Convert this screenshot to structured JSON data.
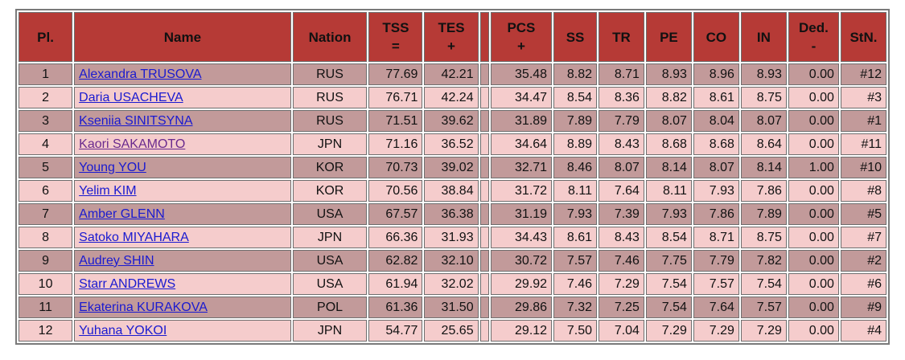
{
  "headers": {
    "pl": "Pl.",
    "name": "Name",
    "nation": "Nation",
    "tss_top": "TSS",
    "tss_bottom": "=",
    "tes_top": "TES",
    "tes_bottom": "+",
    "pcs_top": "PCS",
    "pcs_bottom": "+",
    "ss": "SS",
    "tr": "TR",
    "pe": "PE",
    "co": "CO",
    "in": "IN",
    "ded_top": "Ded.",
    "ded_bottom": "-",
    "stn": "StN."
  },
  "rows": [
    {
      "pl": "1",
      "name": "Alexandra TRUSOVA",
      "nation": "RUS",
      "tss": "77.69",
      "tes": "42.21",
      "pcs": "35.48",
      "ss": "8.82",
      "tr": "8.71",
      "pe": "8.93",
      "co": "8.96",
      "in": "8.93",
      "ded": "0.00",
      "stn": "#12"
    },
    {
      "pl": "2",
      "name": "Daria USACHEVA",
      "nation": "RUS",
      "tss": "76.71",
      "tes": "42.24",
      "pcs": "34.47",
      "ss": "8.54",
      "tr": "8.36",
      "pe": "8.82",
      "co": "8.61",
      "in": "8.75",
      "ded": "0.00",
      "stn": "#3"
    },
    {
      "pl": "3",
      "name": "Kseniia SINITSYNA",
      "nation": "RUS",
      "tss": "71.51",
      "tes": "39.62",
      "pcs": "31.89",
      "ss": "7.89",
      "tr": "7.79",
      "pe": "8.07",
      "co": "8.04",
      "in": "8.07",
      "ded": "0.00",
      "stn": "#1"
    },
    {
      "pl": "4",
      "name": "Kaori SAKAMOTO",
      "nation": "JPN",
      "tss": "71.16",
      "tes": "36.52",
      "pcs": "34.64",
      "ss": "8.89",
      "tr": "8.43",
      "pe": "8.68",
      "co": "8.68",
      "in": "8.64",
      "ded": "0.00",
      "stn": "#11"
    },
    {
      "pl": "5",
      "name": "Young YOU",
      "nation": "KOR",
      "tss": "70.73",
      "tes": "39.02",
      "pcs": "32.71",
      "ss": "8.46",
      "tr": "8.07",
      "pe": "8.14",
      "co": "8.07",
      "in": "8.14",
      "ded": "1.00",
      "stn": "#10"
    },
    {
      "pl": "6",
      "name": "Yelim KIM",
      "nation": "KOR",
      "tss": "70.56",
      "tes": "38.84",
      "pcs": "31.72",
      "ss": "8.11",
      "tr": "7.64",
      "pe": "8.11",
      "co": "7.93",
      "in": "7.86",
      "ded": "0.00",
      "stn": "#8"
    },
    {
      "pl": "7",
      "name": "Amber GLENN",
      "nation": "USA",
      "tss": "67.57",
      "tes": "36.38",
      "pcs": "31.19",
      "ss": "7.93",
      "tr": "7.39",
      "pe": "7.93",
      "co": "7.86",
      "in": "7.89",
      "ded": "0.00",
      "stn": "#5"
    },
    {
      "pl": "8",
      "name": "Satoko MIYAHARA",
      "nation": "JPN",
      "tss": "66.36",
      "tes": "31.93",
      "pcs": "34.43",
      "ss": "8.61",
      "tr": "8.43",
      "pe": "8.54",
      "co": "8.71",
      "in": "8.75",
      "ded": "0.00",
      "stn": "#7"
    },
    {
      "pl": "9",
      "name": "Audrey SHIN",
      "nation": "USA",
      "tss": "62.82",
      "tes": "32.10",
      "pcs": "30.72",
      "ss": "7.57",
      "tr": "7.46",
      "pe": "7.75",
      "co": "7.79",
      "in": "7.82",
      "ded": "0.00",
      "stn": "#2"
    },
    {
      "pl": "10",
      "name": "Starr ANDREWS",
      "nation": "USA",
      "tss": "61.94",
      "tes": "32.02",
      "pcs": "29.92",
      "ss": "7.46",
      "tr": "7.29",
      "pe": "7.54",
      "co": "7.57",
      "in": "7.54",
      "ded": "0.00",
      "stn": "#6"
    },
    {
      "pl": "11",
      "name": "Ekaterina KURAKOVA",
      "nation": "POL",
      "tss": "61.36",
      "tes": "31.50",
      "pcs": "29.86",
      "ss": "7.32",
      "tr": "7.25",
      "pe": "7.54",
      "co": "7.64",
      "in": "7.57",
      "ded": "0.00",
      "stn": "#9"
    },
    {
      "pl": "12",
      "name": "Yuhana YOKOI",
      "nation": "JPN",
      "tss": "54.77",
      "tes": "25.65",
      "pcs": "29.12",
      "ss": "7.50",
      "tr": "7.04",
      "pe": "7.29",
      "co": "7.29",
      "in": "7.29",
      "ded": "0.00",
      "stn": "#4"
    }
  ],
  "colors": {
    "header_bg": "#b63a36",
    "row_dark": "#c29a9a",
    "row_light": "#f5cccc",
    "link": "#1a1ad0",
    "link_visited": "#6a2a8e"
  }
}
